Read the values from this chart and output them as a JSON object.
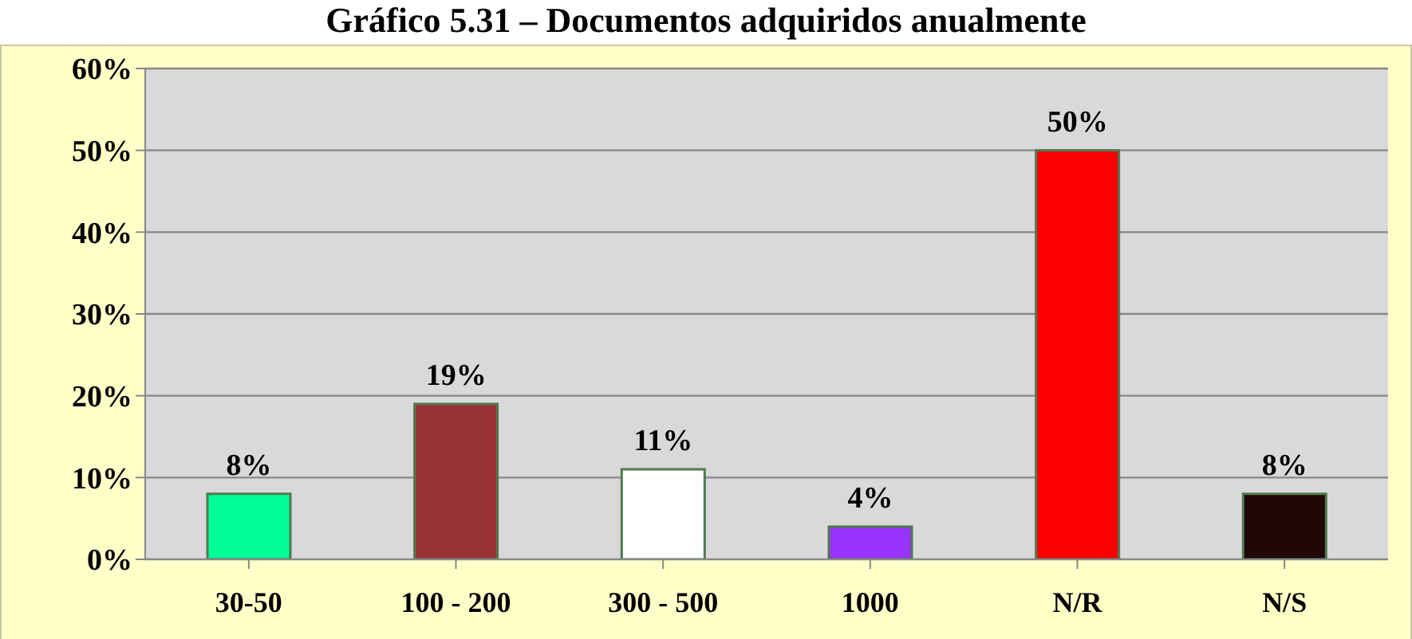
{
  "chart_data": {
    "type": "bar",
    "title": "Gráfico 5.31 – Documentos adquiridos anualmente",
    "categories": [
      "30-50",
      "100 - 200",
      "300 - 500",
      "1000",
      "N/R",
      "N/S"
    ],
    "values": [
      8,
      19,
      11,
      4,
      50,
      8
    ],
    "colors": [
      "#00ff99",
      "#993333",
      "#ffffff",
      "#9933ff",
      "#ff0000",
      "#200808"
    ],
    "value_labels": [
      "8%",
      "19%",
      "11%",
      "4%",
      "50%",
      "8%"
    ],
    "ylim": [
      0,
      60
    ],
    "yticks": [
      {
        "value": 0,
        "label": "0%"
      },
      {
        "value": 10,
        "label": "10%"
      },
      {
        "value": 20,
        "label": "20%"
      },
      {
        "value": 30,
        "label": "30%"
      },
      {
        "value": 40,
        "label": "40%"
      },
      {
        "value": 50,
        "label": "50%"
      },
      {
        "value": 60,
        "label": "60%"
      }
    ],
    "grid": "y",
    "legend": false
  }
}
